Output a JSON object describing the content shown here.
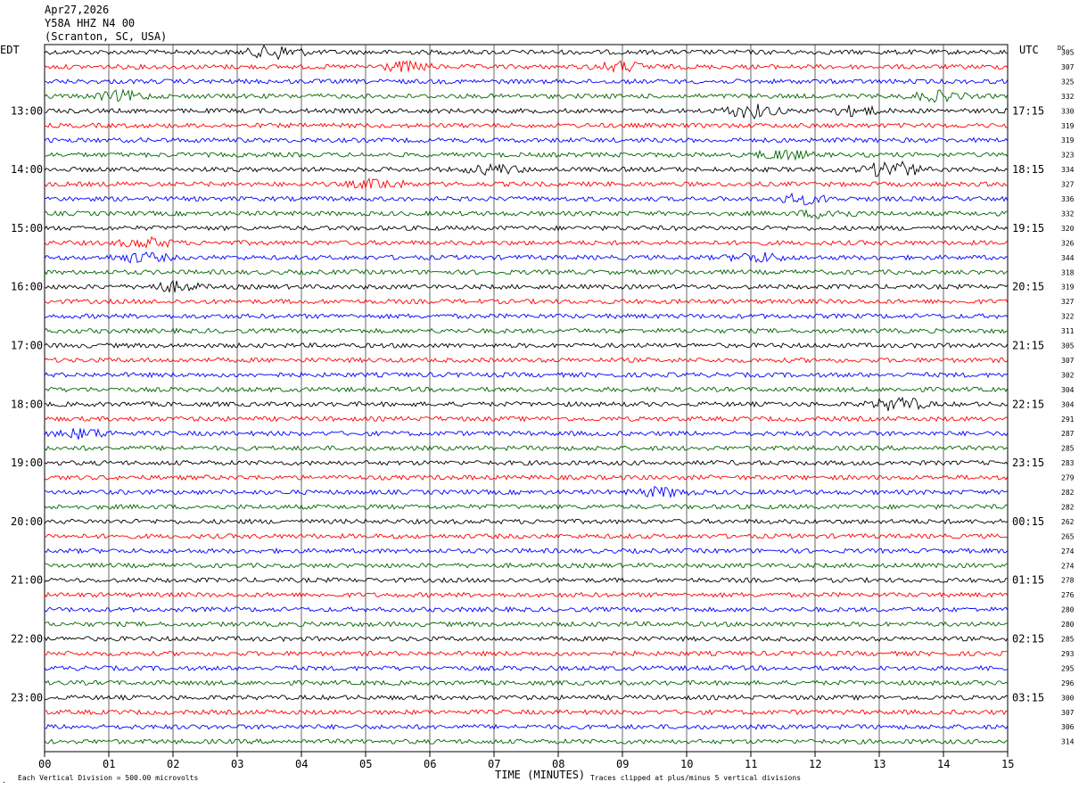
{
  "header": {
    "date": "Apr27,2026",
    "station": "Y58A HHZ N4 00",
    "location": "(Scranton, SC, USA)"
  },
  "left_tz": "EDT",
  "right_tz": "UTC",
  "dc_label": "DC",
  "footer": {
    "scale_note": "Each Vertical Division =  500.00 microvolts",
    "clip_note": "Traces clipped at plus/minus 5 vertical divisions",
    "corner_mark": "."
  },
  "colors": {
    "trace_cycle": [
      "#000000",
      "#ff0000",
      "#0000ff",
      "#006400"
    ],
    "grid": "#000000"
  },
  "chart_data": {
    "type": "line",
    "subtype": "helicorder",
    "xlabel": "TIME (MINUTES)",
    "x_ticks": [
      "00",
      "01",
      "02",
      "03",
      "04",
      "05",
      "06",
      "07",
      "08",
      "09",
      "10",
      "11",
      "12",
      "13",
      "14",
      "15"
    ],
    "xlim": [
      0,
      15
    ],
    "row_minutes": 15,
    "left_hour_labels": [
      "13:00",
      "14:00",
      "15:00",
      "16:00",
      "17:00",
      "18:00",
      "19:00",
      "20:00",
      "21:00",
      "22:00",
      "23:00"
    ],
    "right_hour_labels": [
      "17:15",
      "18:15",
      "19:15",
      "20:15",
      "21:15",
      "22:15",
      "23:15",
      "00:15",
      "01:15",
      "02:15",
      "03:15"
    ],
    "dc_offsets": [
      305,
      307,
      325,
      332,
      330,
      319,
      319,
      323,
      334,
      327,
      336,
      332,
      320,
      326,
      344,
      318,
      319,
      327,
      322,
      311,
      305,
      307,
      302,
      304,
      304,
      291,
      287,
      285,
      283,
      279,
      282,
      282,
      262,
      265,
      274,
      274,
      278,
      276,
      280,
      280,
      285,
      293,
      295,
      296,
      300,
      307,
      306,
      314
    ],
    "events": [
      {
        "row": 0,
        "minute": 3.6,
        "amplitude": 3
      },
      {
        "row": 1,
        "minute": 5.6,
        "amplitude": 2
      },
      {
        "row": 1,
        "minute": 9.0,
        "amplitude": 2
      },
      {
        "row": 3,
        "minute": 1.2,
        "amplitude": 2
      },
      {
        "row": 3,
        "minute": 13.9,
        "amplitude": 2
      },
      {
        "row": 4,
        "minute": 11.0,
        "amplitude": 3
      },
      {
        "row": 4,
        "minute": 12.6,
        "amplitude": 2
      },
      {
        "row": 7,
        "minute": 11.5,
        "amplitude": 2
      },
      {
        "row": 8,
        "minute": 7.0,
        "amplitude": 2
      },
      {
        "row": 8,
        "minute": 13.2,
        "amplitude": 4
      },
      {
        "row": 9,
        "minute": 5.2,
        "amplitude": 2
      },
      {
        "row": 10,
        "minute": 11.8,
        "amplitude": 2
      },
      {
        "row": 11,
        "minute": 12.2,
        "amplitude": 2
      },
      {
        "row": 13,
        "minute": 1.6,
        "amplitude": 2
      },
      {
        "row": 14,
        "minute": 1.5,
        "amplitude": 2
      },
      {
        "row": 14,
        "minute": 11.1,
        "amplitude": 2
      },
      {
        "row": 16,
        "minute": 2.0,
        "amplitude": 2
      },
      {
        "row": 24,
        "minute": 13.3,
        "amplitude": 3
      },
      {
        "row": 26,
        "minute": 0.6,
        "amplitude": 2
      },
      {
        "row": 30,
        "minute": 9.6,
        "amplitude": 2
      }
    ]
  }
}
